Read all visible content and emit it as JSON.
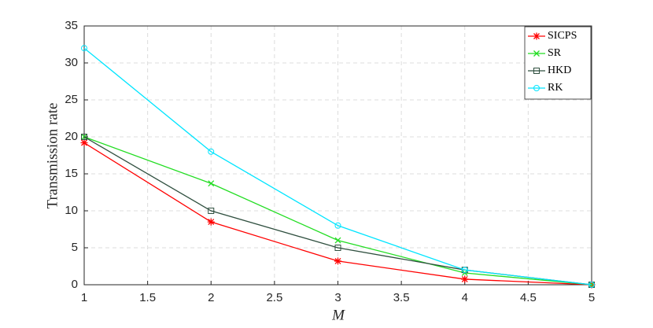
{
  "chart_data": {
    "type": "line",
    "xlabel": "M",
    "ylabel": "Transmission rate",
    "x": [
      1,
      2,
      3,
      4,
      5
    ],
    "series": [
      {
        "name": "SICPS",
        "color": "#ff0000",
        "marker": "asterisk",
        "values": [
          19.2,
          8.5,
          3.2,
          0.75,
          0
        ]
      },
      {
        "name": "SR",
        "color": "#22dd22",
        "marker": "x",
        "values": [
          20,
          13.7,
          6,
          1.6,
          0
        ]
      },
      {
        "name": "HKD",
        "color": "#2f4f3f",
        "marker": "square",
        "values": [
          20,
          10,
          5,
          2,
          0
        ]
      },
      {
        "name": "RK",
        "color": "#00e5ff",
        "marker": "circle",
        "values": [
          32,
          18,
          8,
          2,
          0
        ]
      }
    ],
    "xlim": [
      1,
      5
    ],
    "xticks": [
      1,
      1.5,
      2,
      2.5,
      3,
      3.5,
      4,
      4.5,
      5
    ],
    "ylim": [
      0,
      35
    ],
    "yticks": [
      0,
      5,
      10,
      15,
      20,
      25,
      30,
      35
    ],
    "grid": true,
    "legend": "upper right"
  }
}
